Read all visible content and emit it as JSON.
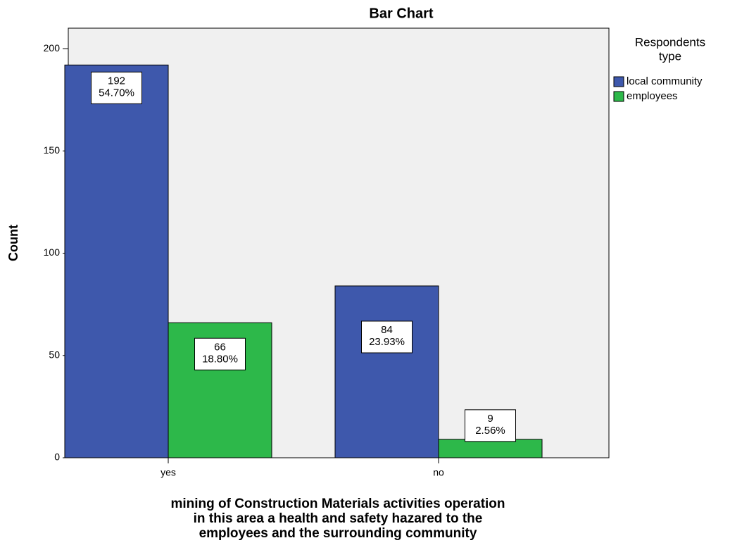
{
  "chart_data": {
    "type": "bar",
    "title": "Bar Chart",
    "ylabel": "Count",
    "xlabel": [
      "mining  of  Construction Materials activities  operation",
      "in this area a health and safety hazared to the",
      "employees and the surrounding community"
    ],
    "categories": [
      "yes",
      "no"
    ],
    "legend_title": [
      "Respondents",
      "type"
    ],
    "series": [
      {
        "name": "local community",
        "color": "#3e58ac",
        "values": [
          192,
          84
        ],
        "percentages": [
          54.7,
          23.93
        ],
        "percentage_labels": [
          "54.70%",
          "23.93%"
        ]
      },
      {
        "name": "employees",
        "color": "#2db84a",
        "values": [
          66,
          9
        ],
        "percentages": [
          18.8,
          2.56
        ],
        "percentage_labels": [
          "18.80%",
          "2.56%"
        ]
      }
    ],
    "ylim": [
      0,
      210
    ],
    "yticks": [
      0,
      50,
      100,
      150,
      200
    ],
    "grid": false
  }
}
